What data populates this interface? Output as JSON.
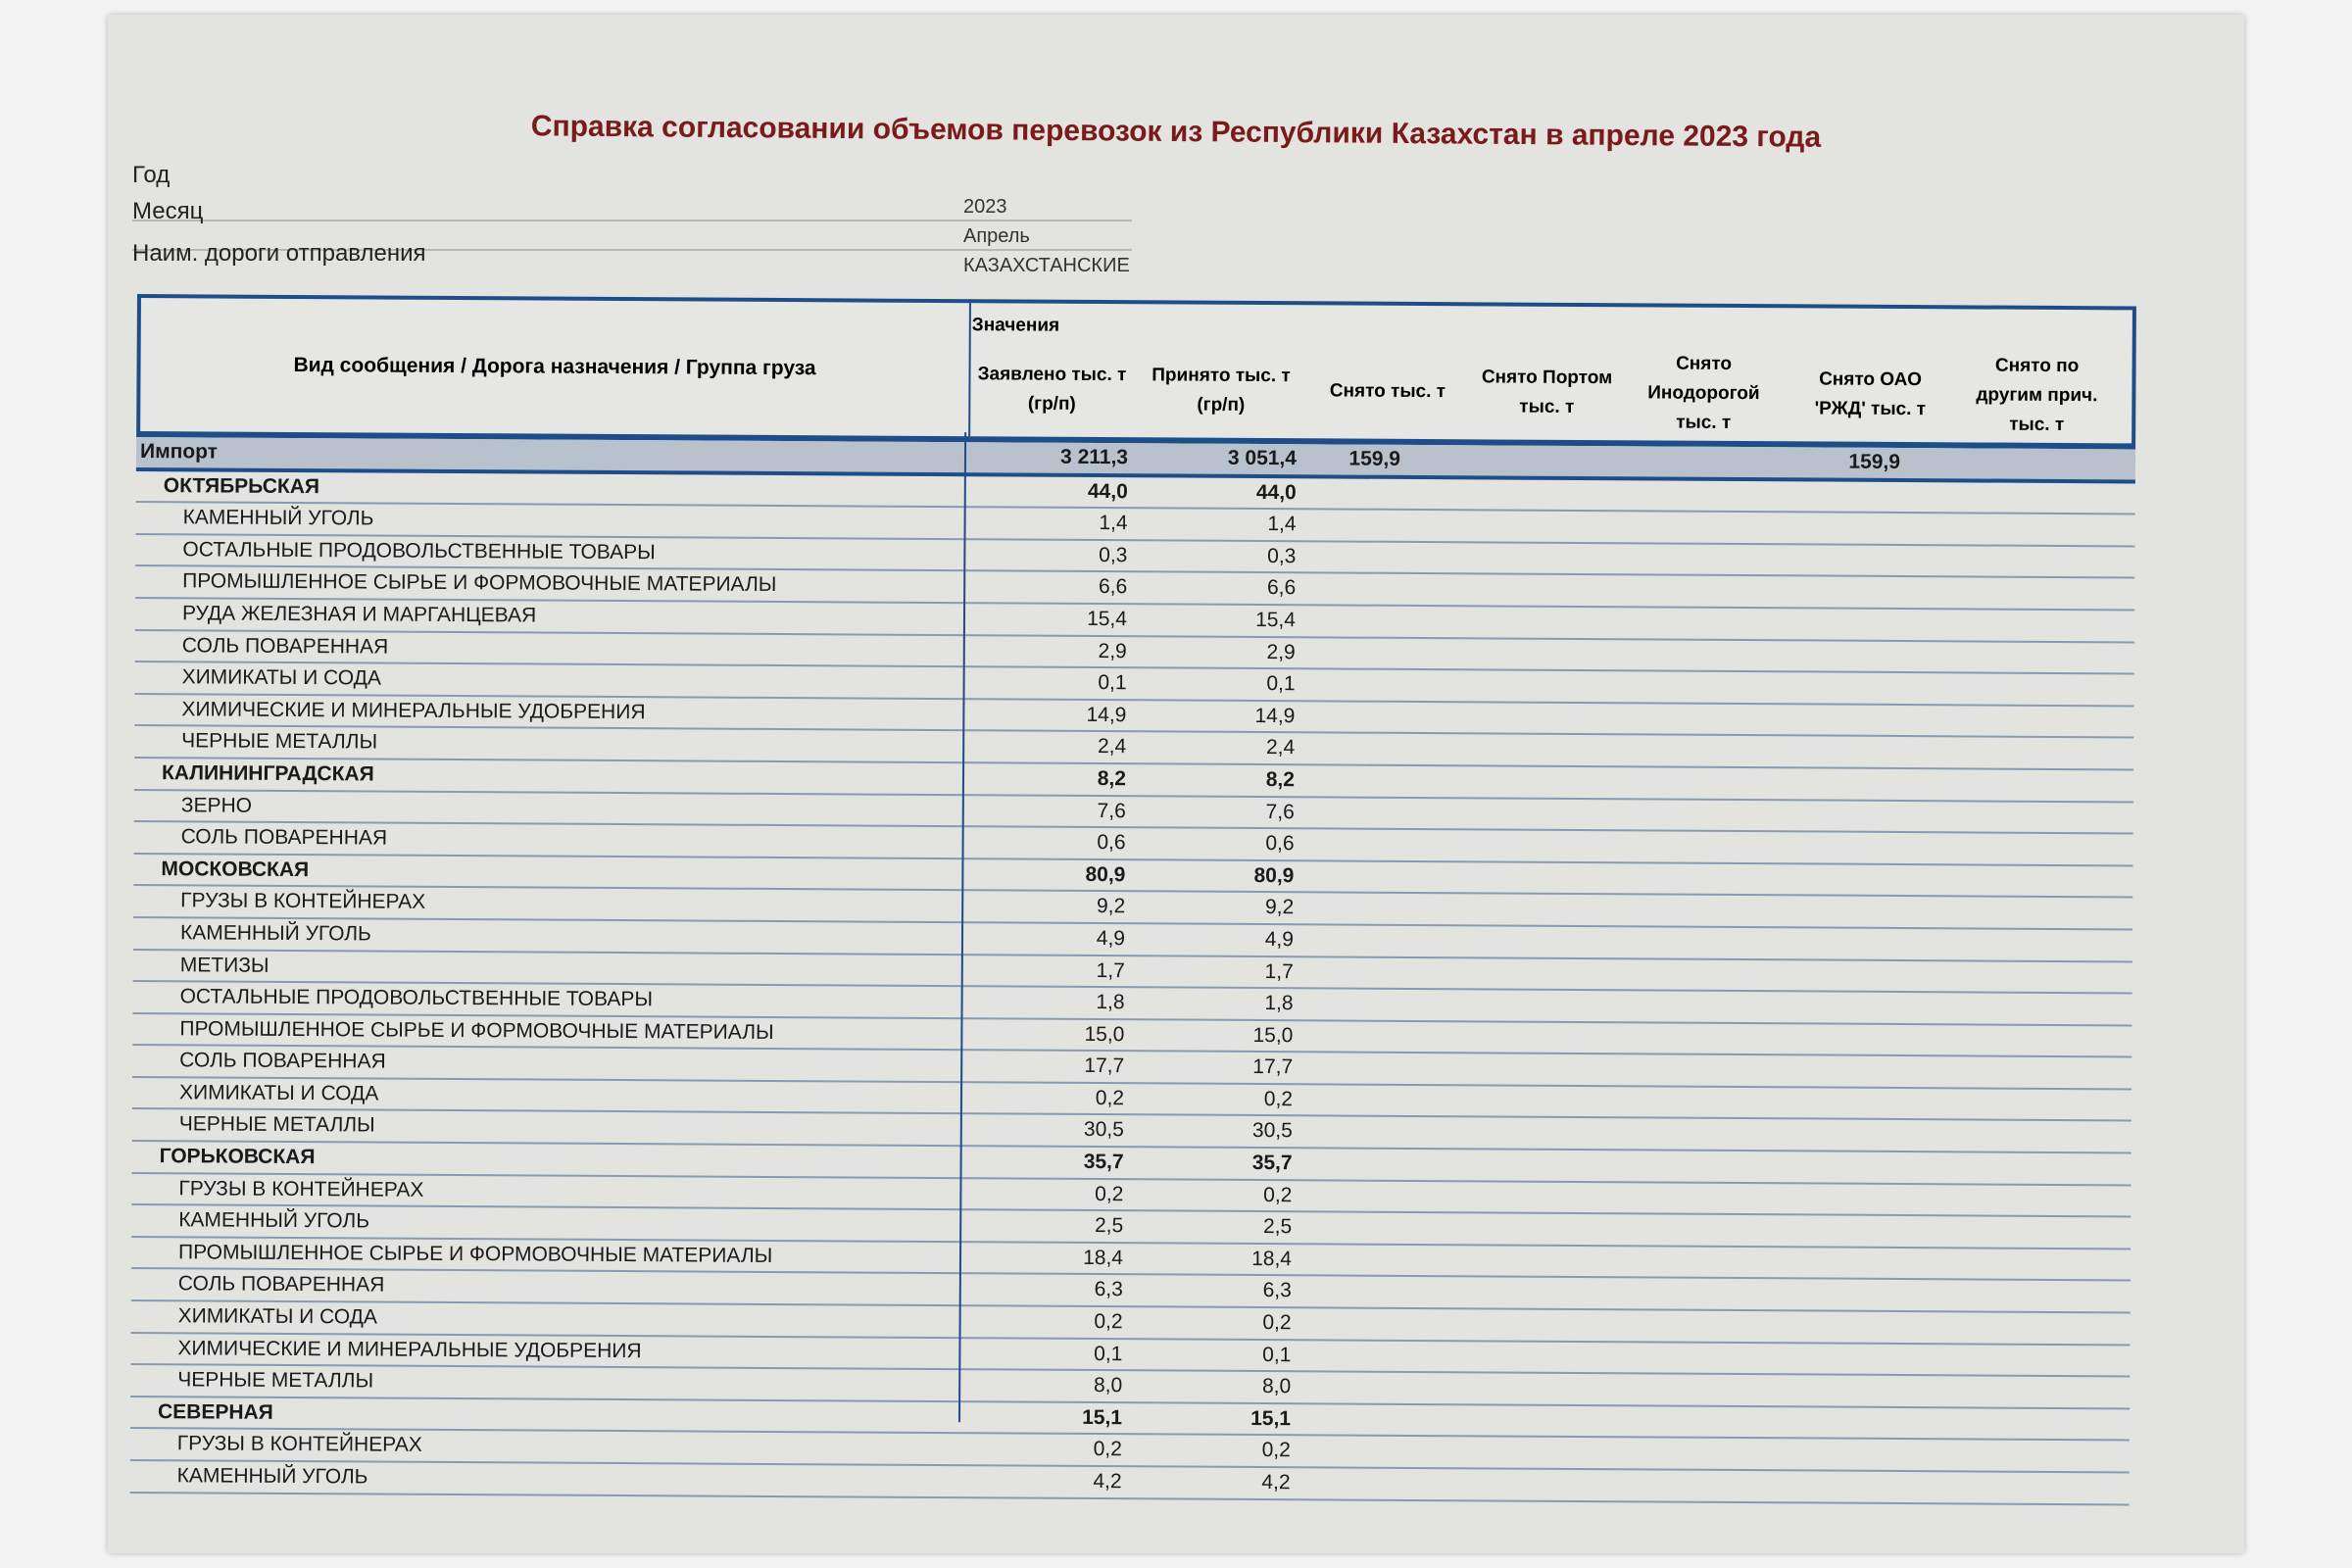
{
  "title": "Справка согласовании объемов перевозок из Республики Казахстан в апреле 2023 года",
  "meta": [
    {
      "label": "Год",
      "value": "2023"
    },
    {
      "label": "Месяц",
      "value": "Апрель"
    },
    {
      "label": "Наим. дороги отправления",
      "value": "КАЗАХСТАНСКИЕ"
    }
  ],
  "table": {
    "group_header": "Значения",
    "columns": [
      "Вид сообщения / Дорога назначения / Группа груза",
      "Заявлено тыс. т (гр/п)",
      "Принято тыс. т (гр/п)",
      "Снято тыс. т",
      "Снято Портом тыс. т",
      "Снято Инодорогой тыс. т",
      "Снято ОАО 'РЖД' тыс. т",
      "Снято по другим прич. тыс. т"
    ],
    "rows": [
      {
        "label": "Импорт",
        "level": 0,
        "declared": "3 211,3",
        "accepted": "3 051,4",
        "removed": "159,9",
        "port": "",
        "foreign": "",
        "rzd": "159,9",
        "other": ""
      },
      {
        "label": "ОКТЯБРЬСКАЯ",
        "level": 1,
        "declared": "44,0",
        "accepted": "44,0"
      },
      {
        "label": "КАМЕННЫЙ УГОЛЬ",
        "level": 2,
        "declared": "1,4",
        "accepted": "1,4"
      },
      {
        "label": "ОСТАЛЬНЫЕ ПРОДОВОЛЬСТВЕННЫЕ ТОВАРЫ",
        "level": 2,
        "declared": "0,3",
        "accepted": "0,3"
      },
      {
        "label": "ПРОМЫШЛЕННОЕ СЫРЬЕ И ФОРМОВОЧНЫЕ МАТЕРИАЛЫ",
        "level": 2,
        "declared": "6,6",
        "accepted": "6,6"
      },
      {
        "label": "РУДА ЖЕЛЕЗНАЯ И МАРГАНЦЕВАЯ",
        "level": 2,
        "declared": "15,4",
        "accepted": "15,4"
      },
      {
        "label": "СОЛЬ ПОВАРЕННАЯ",
        "level": 2,
        "declared": "2,9",
        "accepted": "2,9"
      },
      {
        "label": "ХИМИКАТЫ И СОДА",
        "level": 2,
        "declared": "0,1",
        "accepted": "0,1"
      },
      {
        "label": "ХИМИЧЕСКИЕ И МИНЕРАЛЬНЫЕ УДОБРЕНИЯ",
        "level": 2,
        "declared": "14,9",
        "accepted": "14,9"
      },
      {
        "label": "ЧЕРНЫЕ МЕТАЛЛЫ",
        "level": 2,
        "declared": "2,4",
        "accepted": "2,4"
      },
      {
        "label": "КАЛИНИНГРАДСКАЯ",
        "level": 1,
        "declared": "8,2",
        "accepted": "8,2"
      },
      {
        "label": "ЗЕРНО",
        "level": 2,
        "declared": "7,6",
        "accepted": "7,6"
      },
      {
        "label": "СОЛЬ ПОВАРЕННАЯ",
        "level": 2,
        "declared": "0,6",
        "accepted": "0,6"
      },
      {
        "label": "МОСКОВСКАЯ",
        "level": 1,
        "declared": "80,9",
        "accepted": "80,9"
      },
      {
        "label": "ГРУЗЫ В КОНТЕЙНЕРАХ",
        "level": 2,
        "declared": "9,2",
        "accepted": "9,2"
      },
      {
        "label": "КАМЕННЫЙ УГОЛЬ",
        "level": 2,
        "declared": "4,9",
        "accepted": "4,9"
      },
      {
        "label": "МЕТИЗЫ",
        "level": 2,
        "declared": "1,7",
        "accepted": "1,7"
      },
      {
        "label": "ОСТАЛЬНЫЕ ПРОДОВОЛЬСТВЕННЫЕ ТОВАРЫ",
        "level": 2,
        "declared": "1,8",
        "accepted": "1,8"
      },
      {
        "label": "ПРОМЫШЛЕННОЕ СЫРЬЕ И ФОРМОВОЧНЫЕ МАТЕРИАЛЫ",
        "level": 2,
        "declared": "15,0",
        "accepted": "15,0"
      },
      {
        "label": "СОЛЬ ПОВАРЕННАЯ",
        "level": 2,
        "declared": "17,7",
        "accepted": "17,7"
      },
      {
        "label": "ХИМИКАТЫ И СОДА",
        "level": 2,
        "declared": "0,2",
        "accepted": "0,2"
      },
      {
        "label": "ЧЕРНЫЕ МЕТАЛЛЫ",
        "level": 2,
        "declared": "30,5",
        "accepted": "30,5"
      },
      {
        "label": "ГОРЬКОВСКАЯ",
        "level": 1,
        "declared": "35,7",
        "accepted": "35,7"
      },
      {
        "label": "ГРУЗЫ В КОНТЕЙНЕРАХ",
        "level": 2,
        "declared": "0,2",
        "accepted": "0,2"
      },
      {
        "label": "КАМЕННЫЙ УГОЛЬ",
        "level": 2,
        "declared": "2,5",
        "accepted": "2,5"
      },
      {
        "label": "ПРОМЫШЛЕННОЕ СЫРЬЕ И ФОРМОВОЧНЫЕ МАТЕРИАЛЫ",
        "level": 2,
        "declared": "18,4",
        "accepted": "18,4"
      },
      {
        "label": "СОЛЬ ПОВАРЕННАЯ",
        "level": 2,
        "declared": "6,3",
        "accepted": "6,3"
      },
      {
        "label": "ХИМИКАТЫ И СОДА",
        "level": 2,
        "declared": "0,2",
        "accepted": "0,2"
      },
      {
        "label": "ХИМИЧЕСКИЕ И МИНЕРАЛЬНЫЕ УДОБРЕНИЯ",
        "level": 2,
        "declared": "0,1",
        "accepted": "0,1"
      },
      {
        "label": "ЧЕРНЫЕ МЕТАЛЛЫ",
        "level": 2,
        "declared": "8,0",
        "accepted": "8,0"
      },
      {
        "label": "СЕВЕРНАЯ",
        "level": 1,
        "declared": "15,1",
        "accepted": "15,1"
      },
      {
        "label": "ГРУЗЫ В КОНТЕЙНЕРАХ",
        "level": 2,
        "declared": "0,2",
        "accepted": "0,2"
      },
      {
        "label": "КАМЕННЫЙ УГОЛЬ",
        "level": 2,
        "declared": "4,2",
        "accepted": "4,2"
      }
    ]
  },
  "colors": {
    "title": "#7a1a1a",
    "table_border": "#1d4e8a",
    "import_row": "#b9c2cc"
  }
}
